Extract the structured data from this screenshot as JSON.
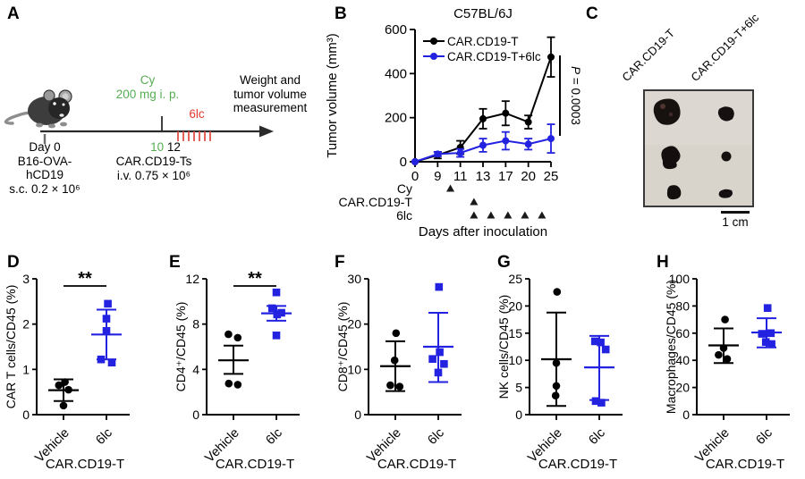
{
  "panel_a": {
    "letter": "A",
    "cy_label": "Cy",
    "cy_dose": "200 mg i. p.",
    "drug_label": "6lc",
    "endpoint_lines": [
      "Weight and",
      "tumor volume",
      "measurement"
    ],
    "day0_lines": [
      "Day 0",
      "B16-OVA-",
      "hCD19",
      "s.c. 0.2 × 10⁶"
    ],
    "day_cy": "10",
    "day_cart": "12",
    "cart_lines": [
      "CAR.CD19-Ts",
      "i.v. 0.75 × 10⁶"
    ],
    "colors": {
      "green": "#55ad53",
      "red": "#e23b31"
    }
  },
  "panel_b": {
    "letter": "B"
  },
  "panel_c": {
    "letter": "C",
    "col_labels": [
      "CAR.CD19-T",
      "CAR.CD19-T+6lc"
    ],
    "scale_bar": "1 cm"
  },
  "chart_data": [
    {
      "id": "panel_b",
      "type": "line",
      "title": "C57BL/6J",
      "ylabel": "Tumor volume (mm³)",
      "xlabel": "Days after inoculation",
      "x": [
        "0",
        "9",
        "11",
        "13",
        "17",
        "20",
        "25"
      ],
      "ylim": [
        0,
        600
      ],
      "yticks": [
        0,
        200,
        400,
        600
      ],
      "grid": false,
      "legend_position": "top-left",
      "series": [
        {
          "name": "CAR.CD19-T",
          "color": "#000000",
          "marker": "circle",
          "values": [
            0,
            30,
            65,
            195,
            220,
            180,
            475
          ],
          "errors": [
            0,
            15,
            30,
            45,
            55,
            30,
            90
          ]
        },
        {
          "name": "CAR.CD19-T+6lc",
          "color": "#2222e0",
          "marker": "circle",
          "values": [
            0,
            35,
            40,
            75,
            95,
            80,
            105
          ],
          "errors": [
            0,
            10,
            18,
            30,
            40,
            25,
            65
          ]
        }
      ],
      "p_value": "P = 0.0003",
      "dosing_rows": [
        {
          "label": "Cy",
          "positions": [
            1.56
          ]
        },
        {
          "label": "CAR.CD19-T",
          "positions": [
            2.6
          ]
        },
        {
          "label": "6lc",
          "positions": [
            2.6,
            3.35,
            4.1,
            4.85,
            5.6
          ]
        }
      ]
    },
    {
      "id": "panel_d",
      "type": "scatter",
      "letter": "D",
      "ylabel": "CAR T cells/CD45 (%)",
      "ylim": [
        0,
        3
      ],
      "yticks": [
        0,
        1,
        2,
        3
      ],
      "significance": "**",
      "group_axis_label": "CAR.CD19-T",
      "groups": [
        {
          "label": "Vehicle",
          "color": "#000000",
          "marker": "circle",
          "points": [
            [
              -0.13,
              0.65
            ],
            [
              0.04,
              0.72
            ],
            [
              0.14,
              0.55
            ],
            [
              0.0,
              0.2
            ]
          ],
          "mean": 0.54,
          "err_low": 0.3,
          "err_high": 0.78
        },
        {
          "label": "6lc",
          "color": "#2222e0",
          "marker": "square",
          "points": [
            [
              0.04,
              2.45
            ],
            [
              0.0,
              2.12
            ],
            [
              0.0,
              1.85
            ],
            [
              -0.15,
              1.22
            ],
            [
              0.15,
              1.15
            ]
          ],
          "mean": 1.77,
          "err_low": 1.22,
          "err_high": 2.32
        }
      ]
    },
    {
      "id": "panel_e",
      "type": "scatter",
      "letter": "E",
      "ylabel": "CD4⁺/CD45 (%)",
      "ylim": [
        0,
        12
      ],
      "yticks": [
        0,
        4,
        8,
        12
      ],
      "significance": "**",
      "group_axis_label": "CAR.CD19-T",
      "groups": [
        {
          "label": "Vehicle",
          "color": "#000000",
          "marker": "circle",
          "points": [
            [
              -0.14,
              7.1
            ],
            [
              0.12,
              6.8
            ],
            [
              -0.13,
              2.75
            ],
            [
              0.12,
              2.65
            ]
          ],
          "mean": 4.8,
          "err_low": 3.6,
          "err_high": 6.1
        },
        {
          "label": "6lc",
          "color": "#2222e0",
          "marker": "square",
          "points": [
            [
              0.0,
              10.8
            ],
            [
              -0.12,
              9.4
            ],
            [
              0.14,
              9.0
            ],
            [
              0.02,
              8.85
            ],
            [
              0.0,
              7.0
            ]
          ],
          "mean": 8.95,
          "err_low": 8.3,
          "err_high": 9.6
        }
      ]
    },
    {
      "id": "panel_f",
      "type": "scatter",
      "letter": "F",
      "ylabel": "CD8⁺/CD45 (%)",
      "ylim": [
        0,
        30
      ],
      "yticks": [
        0,
        10,
        20,
        30
      ],
      "significance": null,
      "group_axis_label": "CAR.CD19-T",
      "groups": [
        {
          "label": "Vehicle",
          "color": "#000000",
          "marker": "circle",
          "points": [
            [
              0.02,
              18
            ],
            [
              -0.02,
              12
            ],
            [
              -0.14,
              6.5
            ],
            [
              0.12,
              6.2
            ]
          ],
          "mean": 10.7,
          "err_low": 5.2,
          "err_high": 16.2
        },
        {
          "label": "6lc",
          "color": "#2222e0",
          "marker": "square",
          "points": [
            [
              0.02,
              28.2
            ],
            [
              0.04,
              13.8
            ],
            [
              -0.16,
              12.3
            ],
            [
              0.16,
              11.2
            ],
            [
              0.0,
              9.3
            ]
          ],
          "mean": 15.0,
          "err_low": 7.2,
          "err_high": 22.5
        }
      ]
    },
    {
      "id": "panel_g",
      "type": "scatter",
      "letter": "G",
      "ylabel": "NK cells/CD45 (%)",
      "ylim": [
        0,
        25
      ],
      "yticks": [
        0,
        5,
        10,
        15,
        20,
        25
      ],
      "significance": null,
      "group_axis_label": "CAR.CD19-T",
      "groups": [
        {
          "label": "Vehicle",
          "color": "#000000",
          "marker": "circle",
          "points": [
            [
              0.02,
              22.6
            ],
            [
              0.0,
              9.5
            ],
            [
              0.0,
              5.3
            ],
            [
              -0.02,
              3.5
            ]
          ],
          "mean": 10.2,
          "err_low": 1.6,
          "err_high": 18.8
        },
        {
          "label": "6lc",
          "color": "#2222e0",
          "marker": "square",
          "points": [
            [
              -0.12,
              13.5
            ],
            [
              0.04,
              13.3
            ],
            [
              0.18,
              12.0
            ],
            [
              -0.1,
              2.5
            ],
            [
              0.06,
              2.2
            ]
          ],
          "mean": 8.7,
          "err_low": 2.7,
          "err_high": 14.5
        }
      ]
    },
    {
      "id": "panel_h",
      "type": "scatter",
      "letter": "H",
      "ylabel": "Macrophages/CD45 (%)",
      "ylim": [
        0,
        100
      ],
      "yticks": [
        0,
        20,
        40,
        60,
        80,
        100
      ],
      "significance": null,
      "group_axis_label": "CAR.CD19-T",
      "groups": [
        {
          "label": "Vehicle",
          "color": "#000000",
          "marker": "circle",
          "points": [
            [
              0.04,
              70
            ],
            [
              0.0,
              49
            ],
            [
              -0.14,
              44
            ],
            [
              0.1,
              41
            ]
          ],
          "mean": 51,
          "err_low": 38,
          "err_high": 63.5
        },
        {
          "label": "6lc",
          "color": "#2222e0",
          "marker": "square",
          "points": [
            [
              0.03,
              78.5
            ],
            [
              -0.13,
              59.5
            ],
            [
              0.12,
              60
            ],
            [
              -0.02,
              53.5
            ],
            [
              0.14,
              52
            ]
          ],
          "mean": 60.5,
          "err_low": 49.5,
          "err_high": 71
        }
      ]
    }
  ]
}
